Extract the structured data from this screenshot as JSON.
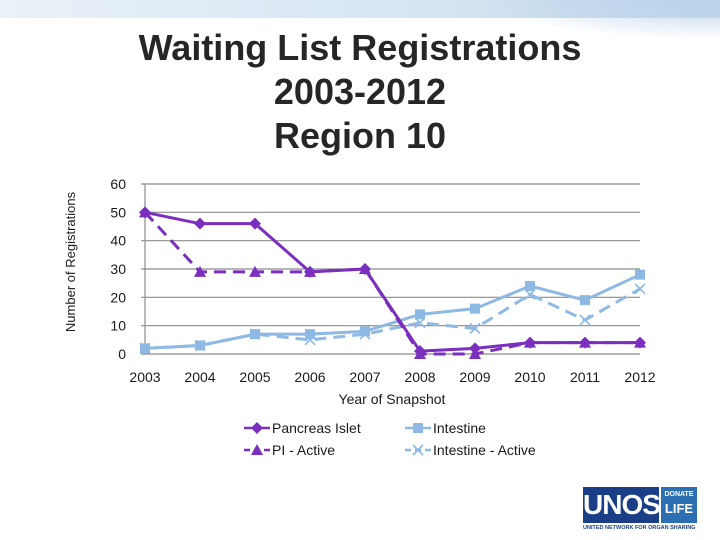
{
  "title_lines": [
    "Waiting List Registrations",
    "2003-2012",
    "Region 10"
  ],
  "colors": {
    "pancreas": "#7b2fbe",
    "intestine": "#8db9e4",
    "grid": "#8c8c8c",
    "text": "#1a1a1a",
    "logo_dark": "#1b3f86",
    "logo_light": "#2c6fb3"
  },
  "logo": {
    "main": "UNOS",
    "badge_top": "DONATE",
    "badge_bottom": "LIFE",
    "tagline": "UNITED NETWORK FOR ORGAN SHARING"
  },
  "chart_data": {
    "type": "line",
    "title": "",
    "xlabel": "Year of Snapshot",
    "ylabel": "Number of Registrations",
    "x": [
      "2003",
      "2004",
      "2005",
      "2006",
      "2007",
      "2008",
      "2009",
      "2010",
      "2011",
      "2012"
    ],
    "ylim": [
      0,
      60
    ],
    "yticks": [
      0,
      10,
      20,
      30,
      40,
      50,
      60
    ],
    "grid": true,
    "legend_position": "bottom",
    "series": [
      {
        "name": "Pancreas Islet",
        "values": [
          50,
          46,
          46,
          29,
          30,
          1,
          2,
          4,
          4,
          4
        ],
        "color": "#7b2fbe",
        "dash": "solid",
        "marker": "diamond"
      },
      {
        "name": "PI - Active",
        "values": [
          50,
          29,
          29,
          29,
          30,
          0,
          0,
          4,
          4,
          4
        ],
        "color": "#7b2fbe",
        "dash": "dashed",
        "marker": "triangle"
      },
      {
        "name": "Intestine",
        "values": [
          2,
          3,
          7,
          7,
          8,
          14,
          16,
          24,
          19,
          28
        ],
        "color": "#8db9e4",
        "dash": "solid",
        "marker": "square"
      },
      {
        "name": "Intestine - Active",
        "values": [
          2,
          3,
          7,
          5,
          7,
          11,
          9,
          21,
          12,
          23
        ],
        "color": "#8db9e4",
        "dash": "dashed",
        "marker": "x"
      }
    ]
  }
}
